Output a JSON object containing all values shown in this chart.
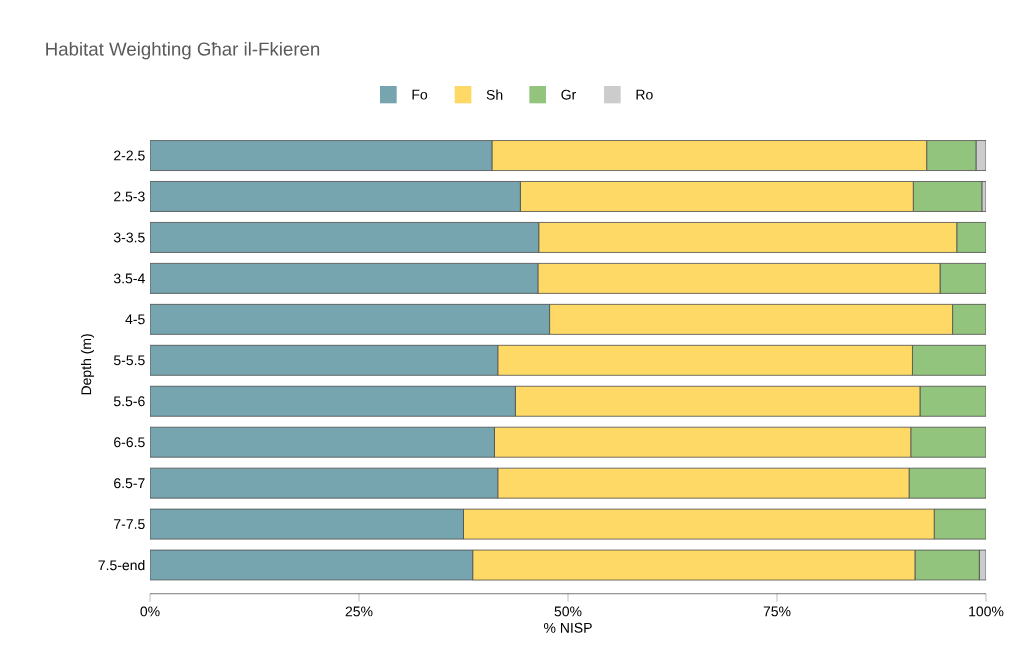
{
  "chart_data": {
    "type": "bar",
    "orientation": "horizontal",
    "stacked": true,
    "title": "Habitat Weighting Għar il-Fkieren",
    "xlabel": "% NISP",
    "ylabel": "Depth (m)",
    "categories": [
      "2-2.5",
      "2.5-3",
      "3-3.5",
      "3.5-4",
      "4-5",
      "5-5.5",
      "5.5-6",
      "6-6.5",
      "6.5-7",
      "7-7.5",
      "7.5-end"
    ],
    "series": [
      {
        "name": "Fo",
        "color": "#76a5af",
        "values": [
          40.9,
          44.3,
          46.5,
          46.4,
          47.8,
          41.6,
          43.7,
          41.2,
          41.6,
          37.5,
          38.6
        ]
      },
      {
        "name": "Sh",
        "color": "#ffd966",
        "values": [
          52.0,
          47.0,
          50.0,
          48.1,
          48.2,
          49.6,
          48.4,
          49.8,
          49.2,
          56.3,
          52.9
        ]
      },
      {
        "name": "Gr",
        "color": "#93c47d",
        "values": [
          5.9,
          8.2,
          3.5,
          5.5,
          4.0,
          8.8,
          7.9,
          9.0,
          9.2,
          6.2,
          7.7
        ]
      },
      {
        "name": "Ro",
        "color": "#cccccc",
        "values": [
          1.2,
          0.5,
          0,
          0,
          0,
          0,
          0,
          0,
          0,
          0,
          0.8
        ]
      }
    ],
    "xlim": [
      0,
      100
    ],
    "xticks": [
      {
        "value": 0,
        "label": "0%"
      },
      {
        "value": 25,
        "label": "25%"
      },
      {
        "value": 50,
        "label": "50%"
      },
      {
        "value": 75,
        "label": "75%"
      },
      {
        "value": 100,
        "label": "100%"
      }
    ],
    "legend": "top"
  }
}
